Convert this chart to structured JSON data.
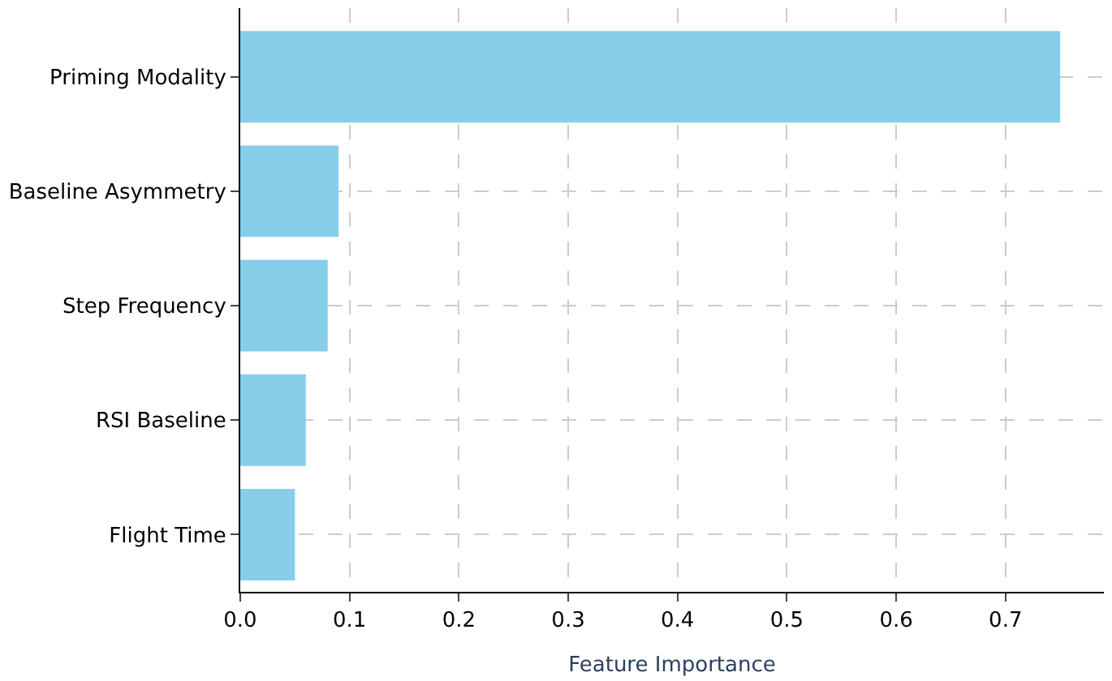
{
  "chart_data": {
    "type": "bar",
    "orientation": "horizontal",
    "xlabel": "Feature Importance",
    "categories": [
      "Priming Modality",
      "Baseline Asymmetry",
      "Step Frequency",
      "RSI Baseline",
      "Flight Time"
    ],
    "values": [
      0.75,
      0.09,
      0.08,
      0.06,
      0.05
    ],
    "color": "#87ceeb",
    "xlim": [
      0,
      0.79
    ],
    "xticks": [
      {
        "value": 0,
        "label": "0.0"
      },
      0.1,
      0.2,
      0.3,
      0.4,
      0.5,
      0.6,
      0.7
    ],
    "grid": true
  }
}
